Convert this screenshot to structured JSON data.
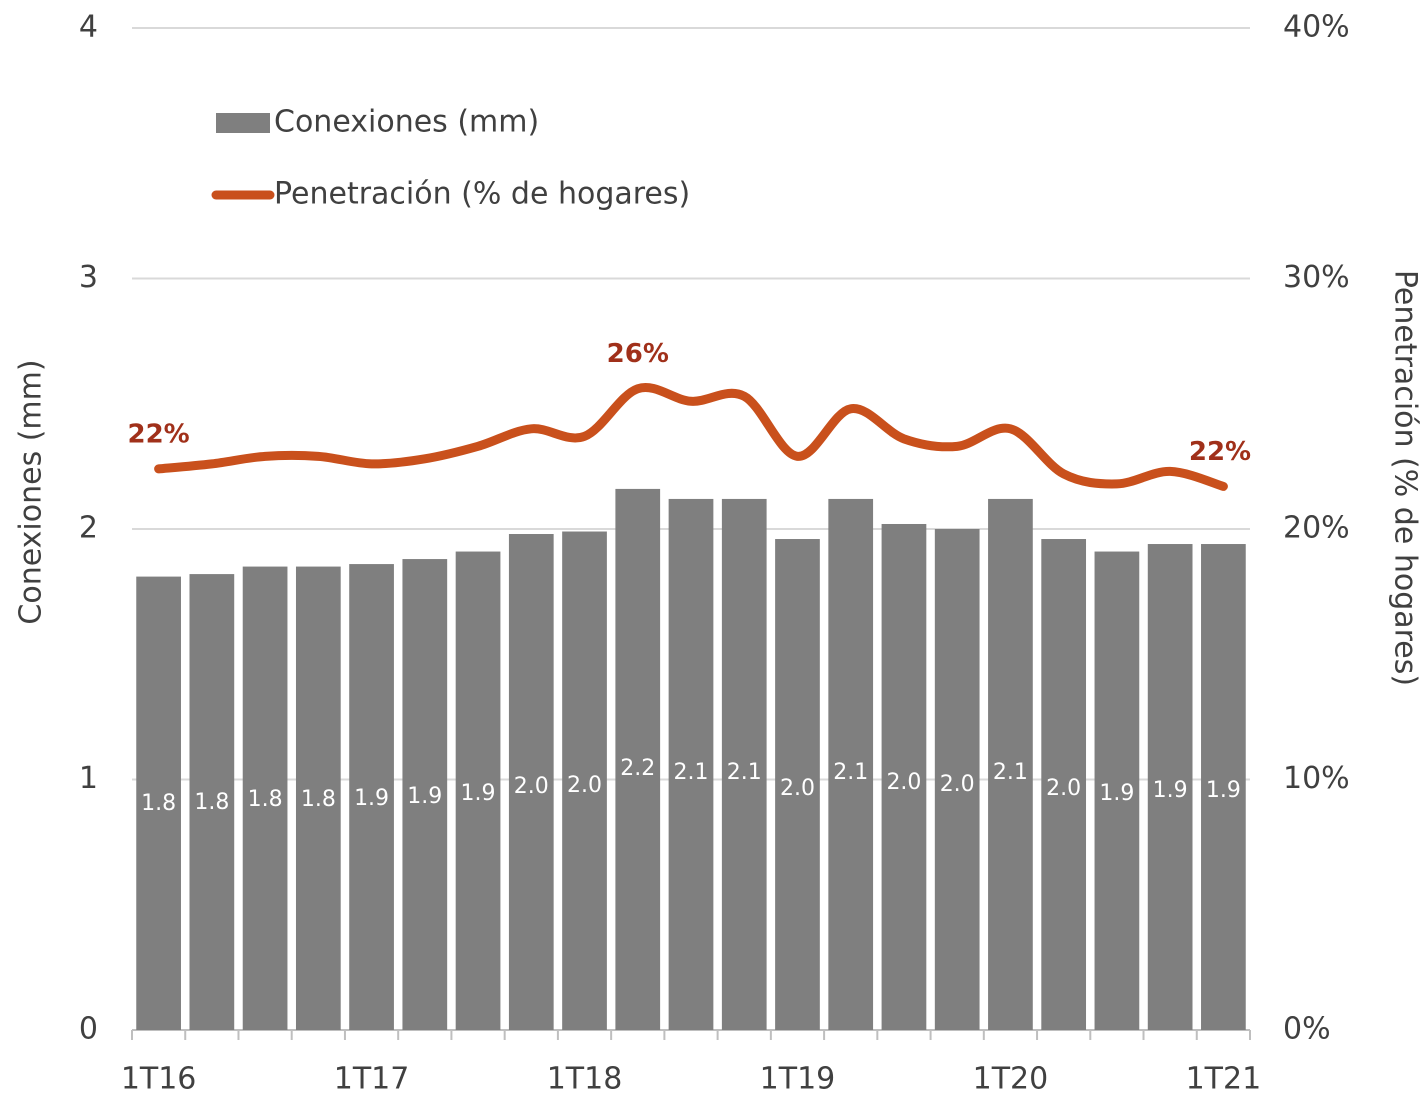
{
  "chart_data": {
    "type": "bar",
    "categories": [
      "1T16",
      null,
      null,
      null,
      "1T17",
      null,
      null,
      null,
      "1T18",
      null,
      null,
      null,
      "1T19",
      null,
      null,
      null,
      "1T20",
      null,
      null,
      null,
      "1T21"
    ],
    "ylabel": "Conexiones (mm)",
    "y2label": "Penetración (% de hogares)",
    "ylim": [
      0,
      4
    ],
    "yticks": [
      0,
      1,
      2,
      3,
      4
    ],
    "y2lim": [
      0,
      40
    ],
    "y2ticks": [
      {
        "value": 0,
        "label": "0%"
      },
      {
        "value": 10,
        "label": "10%"
      },
      {
        "value": 20,
        "label": "20%"
      },
      {
        "value": 30,
        "label": "30%"
      },
      {
        "value": 40,
        "label": "40%"
      }
    ],
    "grid": true,
    "legend": "upper left",
    "series": [
      {
        "name": "Conexiones (mm)",
        "type": "bar",
        "color": "#7f7f7f",
        "values": [
          1.81,
          1.82,
          1.85,
          1.85,
          1.86,
          1.88,
          1.91,
          1.98,
          1.99,
          2.16,
          2.12,
          2.12,
          1.96,
          2.12,
          2.02,
          2.0,
          2.12,
          1.96,
          1.91,
          1.94,
          1.94
        ],
        "value_labels": [
          "1.8",
          "1.8",
          "1.8",
          "1.8",
          "1.9",
          "1.9",
          "1.9",
          "2.0",
          "2.0",
          "2.2",
          "2.1",
          "2.1",
          "2.0",
          "2.1",
          "2.0",
          "2.0",
          "2.1",
          "2.0",
          "1.9",
          "1.9",
          "1.9"
        ]
      },
      {
        "name": "Penetración (% de hogares)",
        "type": "line",
        "axis": "y2",
        "color": "#c9501c",
        "values": [
          22.4,
          22.6,
          22.9,
          22.9,
          22.6,
          22.8,
          23.3,
          24.0,
          23.7,
          25.6,
          25.1,
          25.3,
          22.9,
          24.8,
          23.6,
          23.3,
          24.0,
          22.2,
          21.8,
          22.3,
          21.7
        ],
        "value_labels": [
          "22%",
          null,
          null,
          null,
          null,
          null,
          null,
          null,
          null,
          "26%",
          null,
          null,
          null,
          null,
          null,
          null,
          null,
          null,
          null,
          null,
          "22%"
        ]
      }
    ]
  }
}
